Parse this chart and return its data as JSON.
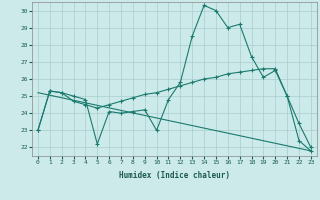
{
  "background_color": "#cceaea",
  "grid_color": "#aacccc",
  "line_color": "#1a7a6e",
  "x_label": "Humidex (Indice chaleur)",
  "ylim": [
    21.5,
    30.5
  ],
  "xlim": [
    -0.5,
    23.5
  ],
  "yticks": [
    22,
    23,
    24,
    25,
    26,
    27,
    28,
    29,
    30
  ],
  "xticks": [
    0,
    1,
    2,
    3,
    4,
    5,
    6,
    7,
    8,
    9,
    10,
    11,
    12,
    13,
    14,
    15,
    16,
    17,
    18,
    19,
    20,
    21,
    22,
    23
  ],
  "series": {
    "line1": {
      "x": [
        0,
        1,
        2,
        3,
        4,
        5,
        6,
        7,
        8,
        9,
        10,
        11,
        12,
        13,
        14,
        15,
        16,
        17,
        18,
        19,
        20,
        21,
        22,
        23
      ],
      "y": [
        23.0,
        25.3,
        25.2,
        25.0,
        24.8,
        22.2,
        24.1,
        24.0,
        24.1,
        24.2,
        23.0,
        24.8,
        25.8,
        28.5,
        30.3,
        30.0,
        29.0,
        29.2,
        27.3,
        26.1,
        26.5,
        25.0,
        23.4,
        22.0
      ]
    },
    "line2": {
      "x": [
        0,
        1,
        2,
        3,
        4,
        5,
        6,
        7,
        8,
        9,
        10,
        11,
        12,
        13,
        14,
        15,
        16,
        17,
        18,
        19,
        20,
        21,
        22,
        23
      ],
      "y": [
        23.0,
        25.3,
        25.2,
        24.7,
        24.5,
        24.3,
        24.5,
        24.7,
        24.9,
        25.1,
        25.2,
        25.4,
        25.6,
        25.8,
        26.0,
        26.1,
        26.3,
        26.4,
        26.5,
        26.6,
        26.6,
        25.0,
        22.4,
        21.8
      ]
    },
    "line3": {
      "x": [
        0,
        23
      ],
      "y": [
        25.2,
        21.8
      ]
    }
  }
}
